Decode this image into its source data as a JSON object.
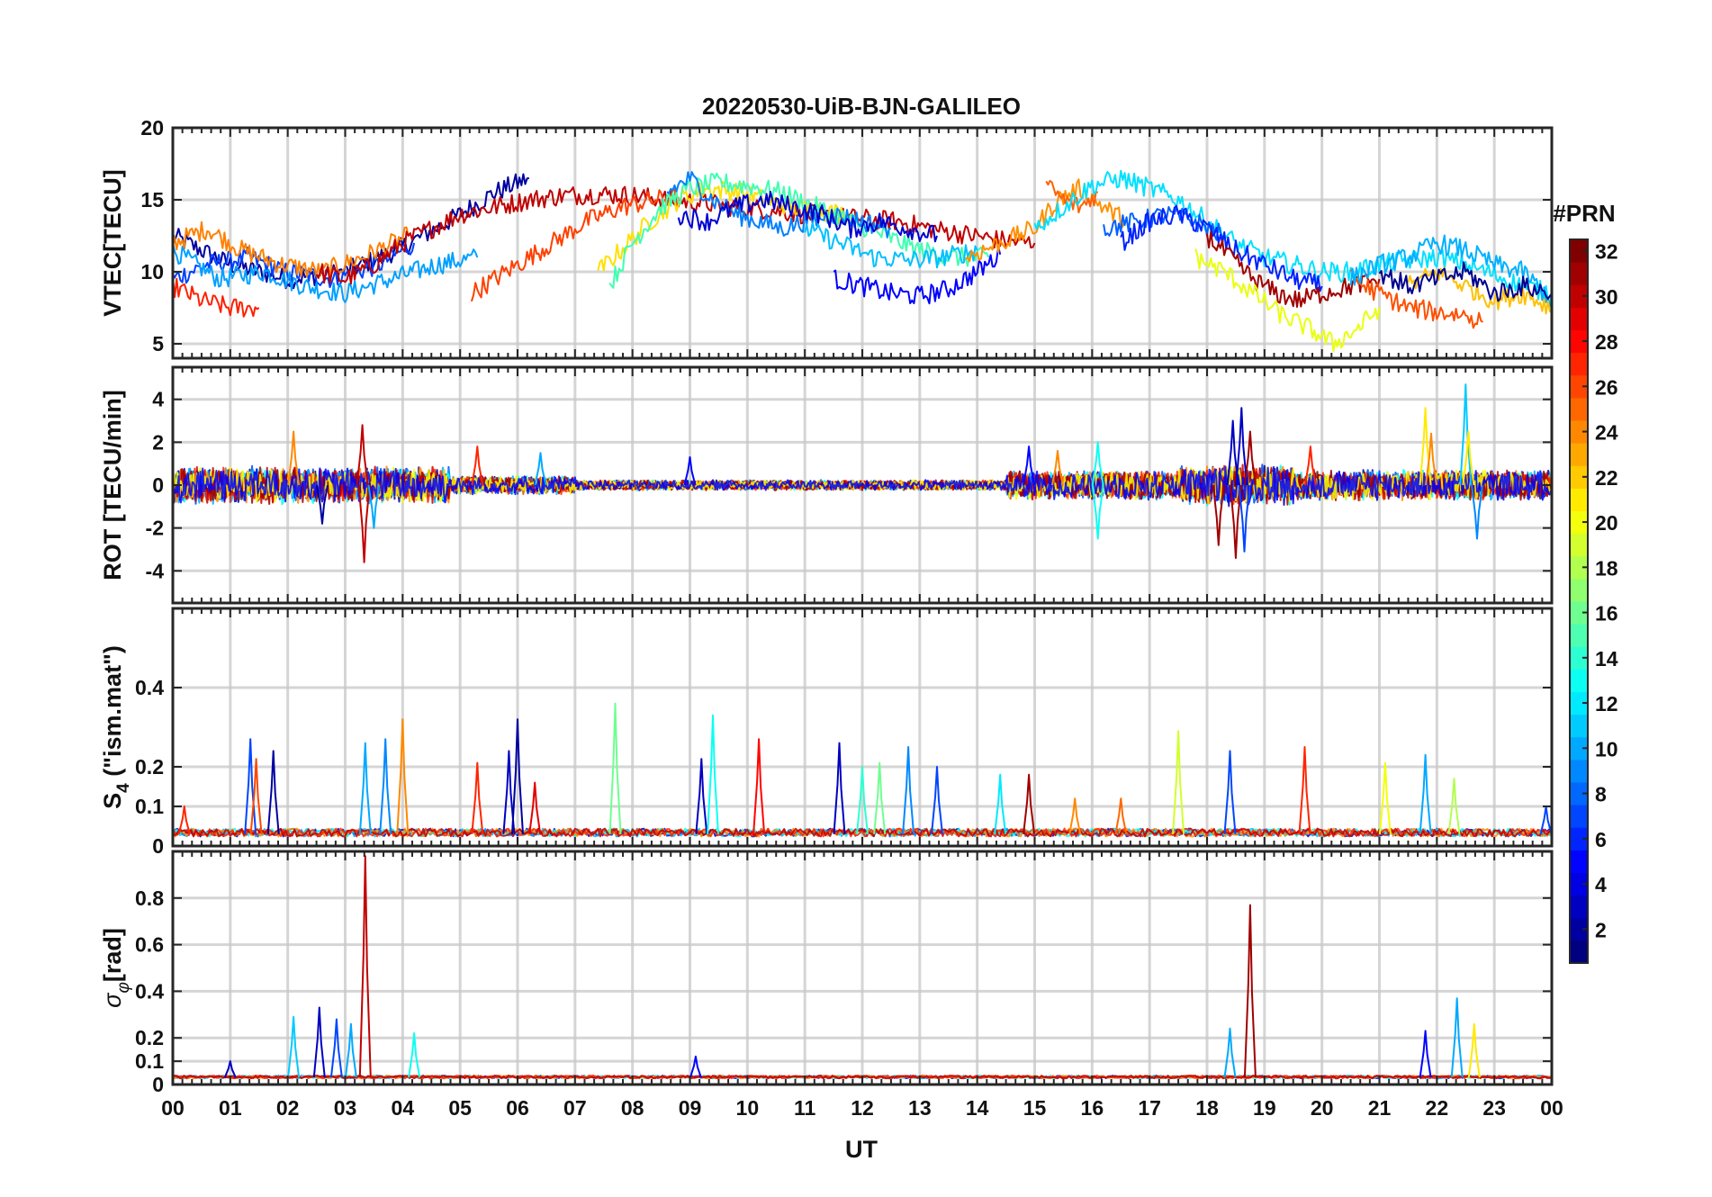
{
  "title": "20220530-UiB-BJN-GALILEO",
  "colorbar": {
    "label": "#PRN",
    "min": 1,
    "max": 32,
    "ticks": [
      2,
      4,
      6,
      8,
      10,
      12,
      14,
      16,
      18,
      20,
      22,
      24,
      26,
      28,
      30,
      32
    ],
    "colormap": "jet",
    "levels": 32
  },
  "x_axis": {
    "label": "UT",
    "range_hours": [
      0,
      24
    ],
    "tick_labels": [
      "00",
      "01",
      "02",
      "03",
      "04",
      "05",
      "06",
      "07",
      "08",
      "09",
      "10",
      "11",
      "12",
      "13",
      "14",
      "15",
      "16",
      "17",
      "18",
      "19",
      "20",
      "21",
      "22",
      "23",
      "00"
    ]
  },
  "chart_data": [
    {
      "type": "line",
      "panel": "vtec",
      "ylabel": "VTEC[TECU]",
      "ylim": [
        4,
        20
      ],
      "yticks": [
        5,
        10,
        15,
        20
      ],
      "grid": true,
      "series": [
        {
          "prn": 2,
          "color": "#00009f",
          "x": [
            0.0,
            1.0,
            2.0,
            3.0,
            3.9,
            4.8,
            5.6,
            6.2
          ],
          "y": [
            12.5,
            10.5,
            9.5,
            10.0,
            11.5,
            13.5,
            15.5,
            16.5
          ]
        },
        {
          "prn": 7,
          "color": "#0040ff",
          "x": [
            0.0,
            0.6,
            1.3,
            2.0,
            2.8,
            3.6,
            4.2
          ],
          "y": [
            9.5,
            10.5,
            11.0,
            10.0,
            9.5,
            10.5,
            12.0
          ]
        },
        {
          "prn": 10,
          "color": "#00a0ff",
          "x": [
            0.0,
            0.8,
            1.6,
            2.3,
            3.0,
            3.8,
            4.6,
            5.3
          ],
          "y": [
            11.5,
            9.5,
            10.0,
            9.0,
            8.5,
            9.5,
            10.5,
            11.0
          ]
        },
        {
          "prn": 24,
          "color": "#ff8000",
          "x": [
            0.0,
            0.6,
            1.2,
            1.9,
            2.6,
            3.3,
            4.1
          ],
          "y": [
            12.0,
            13.0,
            11.5,
            10.5,
            10.0,
            11.0,
            12.5
          ]
        },
        {
          "prn": 28,
          "color": "#ff2000",
          "x": [
            0.0,
            0.5,
            1.0,
            1.5
          ],
          "y": [
            9.0,
            8.0,
            7.5,
            7.5
          ]
        },
        {
          "prn": 30,
          "color": "#c00000",
          "x": [
            2.5,
            3.0,
            3.5,
            4.0,
            4.5,
            5.0,
            5.6,
            6.2,
            6.8,
            7.4,
            8.0,
            8.6,
            9.2,
            9.8,
            10.4,
            11.0,
            11.5,
            12.0,
            12.6,
            13.2,
            13.8,
            14.4,
            15.0
          ],
          "y": [
            10.0,
            9.5,
            10.5,
            12.0,
            13.0,
            14.0,
            14.5,
            15.0,
            15.3,
            15.4,
            15.3,
            15.0,
            14.8,
            14.5,
            14.3,
            14.0,
            13.8,
            13.7,
            13.5,
            13.0,
            12.6,
            12.2,
            12.0
          ]
        },
        {
          "prn": 27,
          "color": "#ff4000",
          "x": [
            5.2,
            5.6,
            6.0,
            6.6,
            7.2,
            7.8,
            8.4,
            8.8
          ],
          "y": [
            8.5,
            9.5,
            10.5,
            12.0,
            13.5,
            14.5,
            15.0,
            15.2
          ]
        },
        {
          "prn": 20,
          "color": "#ffe000",
          "x": [
            7.4,
            7.8,
            8.3,
            8.8,
            9.3,
            9.8,
            10.3,
            10.8,
            11.3,
            11.8
          ],
          "y": [
            10.0,
            11.5,
            13.5,
            15.0,
            15.8,
            15.6,
            15.0,
            14.5,
            14.2,
            14.0
          ]
        },
        {
          "prn": 16,
          "color": "#40ffb0",
          "x": [
            7.6,
            8.0,
            8.5,
            9.0,
            9.5,
            10.0,
            10.6,
            11.2,
            11.8,
            12.4,
            13.0,
            13.6,
            14.2
          ],
          "y": [
            9.0,
            12.0,
            14.5,
            15.8,
            16.2,
            16.0,
            15.5,
            14.5,
            13.5,
            12.5,
            11.5,
            11.0,
            11.0
          ]
        },
        {
          "prn": 9,
          "color": "#0080ff",
          "x": [
            8.6,
            9.0,
            9.4,
            9.8,
            10.2,
            10.6,
            11.0,
            11.5,
            12.0,
            12.5
          ],
          "y": [
            15.5,
            16.5,
            15.0,
            14.0,
            13.5,
            13.0,
            13.5,
            14.0,
            13.5,
            13.0
          ]
        },
        {
          "prn": 4,
          "color": "#0000ff",
          "x": [
            11.5,
            12.0,
            12.5,
            13.0,
            13.5,
            14.0,
            14.4
          ],
          "y": [
            9.5,
            9.0,
            8.5,
            8.3,
            8.8,
            10.0,
            11.2
          ]
        },
        {
          "prn": 3,
          "color": "#0000cf",
          "x": [
            8.8,
            9.3,
            9.8,
            10.3,
            10.8,
            11.3,
            11.8,
            12.3,
            12.8,
            13.3
          ],
          "y": [
            14.0,
            13.5,
            14.5,
            15.0,
            14.5,
            14.0,
            13.0,
            13.5,
            13.0,
            12.5
          ]
        },
        {
          "prn": 12,
          "color": "#00c0ff",
          "x": [
            11.0,
            11.6,
            12.2,
            12.8,
            13.4,
            14.0
          ],
          "y": [
            13.0,
            12.0,
            11.0,
            10.8,
            11.0,
            11.5
          ]
        },
        {
          "prn": 23,
          "color": "#ff9000",
          "x": [
            13.8,
            14.4,
            15.0,
            15.4,
            15.8,
            16.2,
            16.6
          ],
          "y": [
            11.0,
            12.0,
            13.0,
            15.0,
            15.8,
            14.5,
            13.5
          ]
        },
        {
          "prn": 25,
          "color": "#ff6000",
          "x": [
            15.2,
            15.5,
            15.8,
            16.1
          ],
          "y": [
            16.0,
            15.0,
            14.5,
            15.5
          ]
        },
        {
          "prn": 13,
          "color": "#00e0ff",
          "x": [
            15.0,
            15.5,
            16.0,
            16.5,
            17.0,
            17.5,
            18.0,
            18.5,
            19.0,
            19.5,
            20.0,
            20.5,
            21.0,
            21.5,
            22.0,
            22.5,
            23.0,
            23.5,
            24.0
          ],
          "y": [
            13.0,
            14.5,
            16.0,
            16.5,
            15.8,
            15.0,
            13.5,
            12.0,
            11.0,
            10.5,
            10.0,
            10.0,
            10.5,
            10.8,
            11.0,
            10.5,
            9.8,
            9.0,
            8.5
          ]
        },
        {
          "prn": 6,
          "color": "#0060ff",
          "x": [
            16.2,
            16.8,
            17.3,
            17.8,
            18.3
          ],
          "y": [
            13.0,
            13.5,
            14.0,
            13.5,
            12.5
          ]
        },
        {
          "prn": 5,
          "color": "#0020ff",
          "x": [
            16.5,
            17.0,
            17.5,
            18.0,
            18.5,
            19.0,
            19.5,
            20.0
          ],
          "y": [
            12.0,
            13.5,
            14.0,
            13.0,
            11.5,
            10.5,
            9.5,
            9.0
          ]
        },
        {
          "prn": 31,
          "color": "#a00000",
          "x": [
            18.0,
            18.4,
            18.8,
            19.2,
            19.6,
            20.0,
            20.5,
            21.0
          ],
          "y": [
            12.5,
            11.0,
            9.5,
            8.5,
            8.0,
            8.5,
            9.0,
            9.5
          ]
        },
        {
          "prn": 19,
          "color": "#e8ff10",
          "x": [
            17.8,
            18.3,
            18.8,
            19.3,
            19.8,
            20.2,
            20.6,
            21.0
          ],
          "y": [
            11.0,
            10.0,
            8.5,
            7.0,
            6.0,
            5.0,
            6.0,
            7.5
          ]
        },
        {
          "prn": 26,
          "color": "#ff5000",
          "x": [
            20.5,
            21.0,
            21.5,
            22.0,
            22.5,
            22.8
          ],
          "y": [
            9.5,
            8.5,
            7.5,
            7.2,
            7.0,
            6.5
          ]
        },
        {
          "prn": 11,
          "color": "#00b0ff",
          "x": [
            20.5,
            21.0,
            21.5,
            22.0,
            22.5,
            23.0,
            23.5,
            24.0
          ],
          "y": [
            9.5,
            10.5,
            11.0,
            12.0,
            11.5,
            10.5,
            10.0,
            8.0
          ]
        },
        {
          "prn": 21,
          "color": "#ffc000",
          "x": [
            21.5,
            22.0,
            22.5,
            23.0,
            23.5,
            24.0
          ],
          "y": [
            9.0,
            10.0,
            9.0,
            8.0,
            8.5,
            7.5
          ]
        },
        {
          "prn": 1,
          "color": "#00008f",
          "x": [
            21.0,
            21.5,
            22.0,
            22.5,
            23.0,
            23.5,
            24.0
          ],
          "y": [
            10.0,
            9.0,
            9.5,
            10.0,
            8.5,
            9.0,
            8.5
          ]
        }
      ]
    },
    {
      "type": "line",
      "panel": "rot",
      "ylabel": "ROT [TECU/min]",
      "ylim": [
        -5.5,
        5.5
      ],
      "yticks": [
        -4,
        -2,
        0,
        2,
        4
      ],
      "grid": true,
      "noise_windows": [
        {
          "start": 0.0,
          "end": 4.8,
          "amplitude": 0.9
        },
        {
          "start": 4.8,
          "end": 7.0,
          "amplitude": 0.45
        },
        {
          "start": 7.0,
          "end": 14.5,
          "amplitude": 0.25
        },
        {
          "start": 14.5,
          "end": 17.5,
          "amplitude": 0.7
        },
        {
          "start": 17.5,
          "end": 19.5,
          "amplitude": 1.0
        },
        {
          "start": 19.5,
          "end": 24.0,
          "amplitude": 0.75
        }
      ],
      "spikes": [
        {
          "x": 2.1,
          "y": 2.5,
          "prn": 24
        },
        {
          "x": 2.6,
          "y": -1.8,
          "prn": 2
        },
        {
          "x": 3.3,
          "y": 2.8,
          "prn": 30
        },
        {
          "x": 3.33,
          "y": -3.6,
          "prn": 30
        },
        {
          "x": 3.5,
          "y": -2.0,
          "prn": 10
        },
        {
          "x": 5.3,
          "y": 1.8,
          "prn": 27
        },
        {
          "x": 6.4,
          "y": 1.5,
          "prn": 10
        },
        {
          "x": 9.0,
          "y": 1.3,
          "prn": 5
        },
        {
          "x": 14.9,
          "y": 1.8,
          "prn": 5
        },
        {
          "x": 15.4,
          "y": 1.6,
          "prn": 24
        },
        {
          "x": 16.1,
          "y": -2.5,
          "prn": 13
        },
        {
          "x": 16.1,
          "y": 2.0,
          "prn": 13
        },
        {
          "x": 18.2,
          "y": -2.8,
          "prn": 31
        },
        {
          "x": 18.45,
          "y": 3.0,
          "prn": 3
        },
        {
          "x": 18.5,
          "y": -3.4,
          "prn": 31
        },
        {
          "x": 18.6,
          "y": 3.6,
          "prn": 3
        },
        {
          "x": 18.65,
          "y": -3.1,
          "prn": 7
        },
        {
          "x": 18.75,
          "y": 2.5,
          "prn": 31
        },
        {
          "x": 19.8,
          "y": 1.8,
          "prn": 27
        },
        {
          "x": 21.8,
          "y": 3.6,
          "prn": 21
        },
        {
          "x": 21.9,
          "y": 2.4,
          "prn": 24
        },
        {
          "x": 22.5,
          "y": 4.7,
          "prn": 11
        },
        {
          "x": 22.55,
          "y": 2.5,
          "prn": 21
        },
        {
          "x": 22.7,
          "y": -2.5,
          "prn": 9
        }
      ]
    },
    {
      "type": "line",
      "panel": "s4",
      "ylabel_main": "S",
      "ylabel_sub": "4",
      "ylabel_rest": " (\"ism.mat\")",
      "ylim": [
        0,
        0.6
      ],
      "yticks": [
        0,
        0.1,
        0.2,
        0.4
      ],
      "grid": true,
      "baseline": 0.03,
      "noise": 0.02,
      "spikes": [
        {
          "x": 0.2,
          "y": 0.1,
          "prn": 27
        },
        {
          "x": 1.35,
          "y": 0.27,
          "prn": 7
        },
        {
          "x": 1.45,
          "y": 0.22,
          "prn": 26
        },
        {
          "x": 1.75,
          "y": 0.24,
          "prn": 2
        },
        {
          "x": 3.35,
          "y": 0.26,
          "prn": 10
        },
        {
          "x": 3.7,
          "y": 0.27,
          "prn": 9
        },
        {
          "x": 4.0,
          "y": 0.32,
          "prn": 24
        },
        {
          "x": 5.3,
          "y": 0.21,
          "prn": 27
        },
        {
          "x": 5.85,
          "y": 0.24,
          "prn": 3
        },
        {
          "x": 6.0,
          "y": 0.32,
          "prn": 2
        },
        {
          "x": 6.3,
          "y": 0.16,
          "prn": 29
        },
        {
          "x": 7.7,
          "y": 0.36,
          "prn": 16
        },
        {
          "x": 9.2,
          "y": 0.22,
          "prn": 3
        },
        {
          "x": 9.4,
          "y": 0.33,
          "prn": 13
        },
        {
          "x": 10.2,
          "y": 0.27,
          "prn": 28
        },
        {
          "x": 11.6,
          "y": 0.26,
          "prn": 3
        },
        {
          "x": 12.0,
          "y": 0.2,
          "prn": 14
        },
        {
          "x": 12.3,
          "y": 0.21,
          "prn": 16
        },
        {
          "x": 12.8,
          "y": 0.25,
          "prn": 9
        },
        {
          "x": 13.3,
          "y": 0.2,
          "prn": 7
        },
        {
          "x": 14.4,
          "y": 0.18,
          "prn": 12
        },
        {
          "x": 14.9,
          "y": 0.18,
          "prn": 31
        },
        {
          "x": 15.7,
          "y": 0.12,
          "prn": 24
        },
        {
          "x": 16.5,
          "y": 0.12,
          "prn": 25
        },
        {
          "x": 17.5,
          "y": 0.29,
          "prn": 19
        },
        {
          "x": 18.4,
          "y": 0.24,
          "prn": 7
        },
        {
          "x": 19.7,
          "y": 0.25,
          "prn": 27
        },
        {
          "x": 21.1,
          "y": 0.21,
          "prn": 20
        },
        {
          "x": 21.8,
          "y": 0.23,
          "prn": 10
        },
        {
          "x": 22.3,
          "y": 0.17,
          "prn": 18
        },
        {
          "x": 23.9,
          "y": 0.1,
          "prn": 7
        }
      ]
    },
    {
      "type": "line",
      "panel": "sigma_phi",
      "ylabel_main": "σ",
      "ylabel_sub": "φ",
      "ylabel_rest": "[rad]",
      "ylim": [
        0,
        1
      ],
      "yticks": [
        0,
        0.1,
        0.2,
        0.4,
        0.6,
        0.8
      ],
      "grid": true,
      "baseline": 0.03,
      "noise": 0.012,
      "spikes": [
        {
          "x": 1.0,
          "y": 0.1,
          "prn": 3
        },
        {
          "x": 2.1,
          "y": 0.29,
          "prn": 11
        },
        {
          "x": 2.55,
          "y": 0.33,
          "prn": 3
        },
        {
          "x": 2.85,
          "y": 0.28,
          "prn": 7
        },
        {
          "x": 3.1,
          "y": 0.26,
          "prn": 10
        },
        {
          "x": 3.35,
          "y": 0.98,
          "prn": 30
        },
        {
          "x": 4.2,
          "y": 0.22,
          "prn": 13
        },
        {
          "x": 9.1,
          "y": 0.12,
          "prn": 5
        },
        {
          "x": 18.4,
          "y": 0.24,
          "prn": 10
        },
        {
          "x": 18.75,
          "y": 0.77,
          "prn": 31
        },
        {
          "x": 21.8,
          "y": 0.23,
          "prn": 5
        },
        {
          "x": 22.35,
          "y": 0.37,
          "prn": 10
        },
        {
          "x": 22.65,
          "y": 0.26,
          "prn": 21
        }
      ]
    }
  ]
}
